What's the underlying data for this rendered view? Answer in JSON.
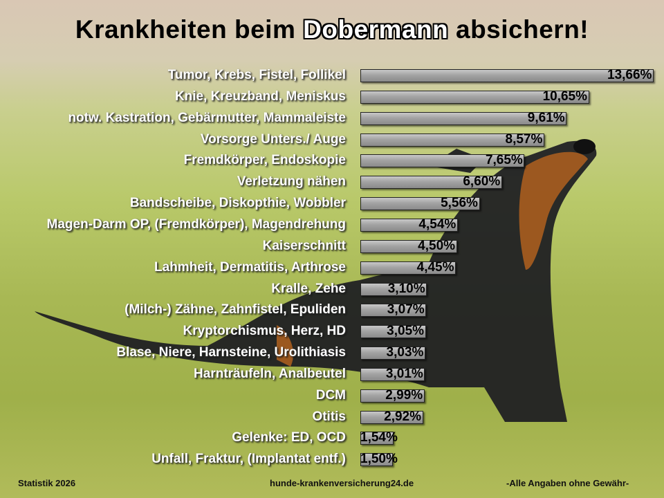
{
  "title": {
    "part1": "Krankheiten beim ",
    "highlight": "Dobermann",
    "part2": " absichern!"
  },
  "chart_data": {
    "type": "bar",
    "orientation": "horizontal",
    "unit": "%",
    "categories": [
      "Tumor, Krebs, Fistel, Follikel",
      "Knie, Kreuzband, Meniskus",
      "notw. Kastration, Gebärmutter, Mammaleiste",
      "Vorsorge Unters./ Auge",
      "Fremdkörper, Endoskopie",
      "Verletzung nähen",
      "Bandscheibe, Diskopthie, Wobbler",
      "Magen-Darm OP, (Fremdkörper), Magendrehung",
      "Kaiserschnitt",
      "Lahmheit, Dermatitis, Arthrose",
      "Kralle, Zehe",
      "(Milch-) Zähne, Zahnfistel, Epuliden",
      "Kryptorchismus, Herz, HD",
      "Blase, Niere, Harnsteine, Urolithiasis",
      "Harnträufeln, Analbeutel",
      "DCM",
      "Otitis",
      "Gelenke: ED, OCD",
      "Unfall, Fraktur, (Implantat entf.)"
    ],
    "values": [
      13.66,
      10.65,
      9.61,
      8.57,
      7.65,
      6.6,
      5.56,
      4.54,
      4.5,
      4.45,
      3.1,
      3.07,
      3.05,
      3.03,
      3.01,
      2.99,
      2.92,
      1.54,
      1.5
    ],
    "labels": [
      "13,66%",
      "10,65%",
      "9,61%",
      "8,57%",
      "7,65%",
      "6,60%",
      "5,56%",
      "4,54%",
      "4,50%",
      "4,45%",
      "3,10%",
      "3,07%",
      "3,05%",
      "3,03%",
      "3,01%",
      "2,99%",
      "2,92%",
      "1,54%",
      "1,50%"
    ],
    "bar_color": "#a0a0a0"
  },
  "footer": {
    "left": "Statistik 2026",
    "center": "hunde-krankenversicherung24.de",
    "right": "-Alle Angaben ohne Gewähr-"
  }
}
